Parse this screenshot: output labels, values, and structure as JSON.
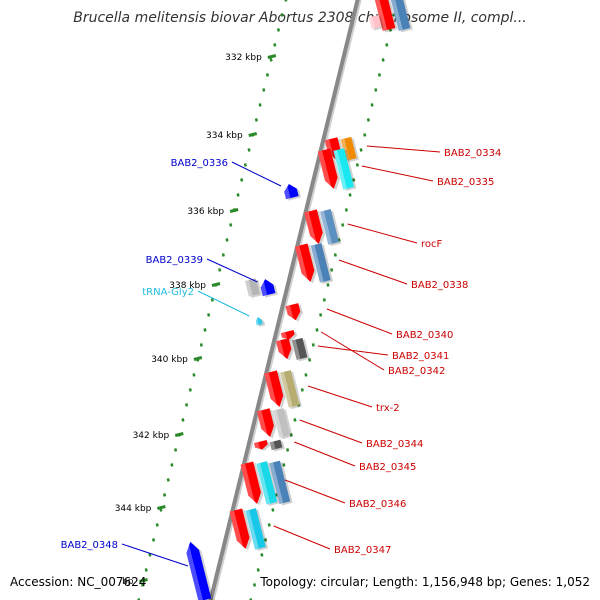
{
  "title": "Brucella melitensis biovar Abortus 2308 chromosome II, compl...",
  "footer": {
    "accession": "Accession: NC_007624",
    "topology": "Topology: circular; Length: 1,156,948 bp; Genes: 1,052"
  },
  "colors": {
    "forward_gene": "#ff0000",
    "reverse_gene": "#0000ff",
    "trna": "#33c8e8",
    "axis": "#888888",
    "tick": "#2a8a2a",
    "label_red": "#cc0000",
    "label_blue": "#0000cc",
    "label_cyan": "#22bbdd"
  },
  "ticks": [
    {
      "label": "332 kbp"
    },
    {
      "label": "334 kbp"
    },
    {
      "label": "336 kbp"
    },
    {
      "label": "338 kbp"
    },
    {
      "label": "340 kbp"
    },
    {
      "label": "342 kbp"
    },
    {
      "label": "344 kbp"
    },
    {
      "label": "bp"
    }
  ],
  "features": [
    {
      "name": "BAB2_0334",
      "strand": "+",
      "color": "red"
    },
    {
      "name": "BAB2_0335",
      "strand": "+",
      "color": "red"
    },
    {
      "name": "BAB2_0336",
      "strand": "-",
      "color": "blue"
    },
    {
      "name": "rocF",
      "strand": "+",
      "color": "red"
    },
    {
      "name": "BAB2_0338",
      "strand": "+",
      "color": "red"
    },
    {
      "name": "BAB2_0339",
      "strand": "-",
      "color": "blue"
    },
    {
      "name": "tRNA-Gly2",
      "strand": "-",
      "color": "cyan"
    },
    {
      "name": "BAB2_0340",
      "strand": "+",
      "color": "red"
    },
    {
      "name": "BAB2_0341",
      "strand": "+",
      "color": "red"
    },
    {
      "name": "BAB2_0342",
      "strand": "+",
      "color": "red"
    },
    {
      "name": "trx-2",
      "strand": "+",
      "color": "red"
    },
    {
      "name": "BAB2_0344",
      "strand": "+",
      "color": "red"
    },
    {
      "name": "BAB2_0345",
      "strand": "+",
      "color": "red"
    },
    {
      "name": "BAB2_0346",
      "strand": "+",
      "color": "red"
    },
    {
      "name": "BAB2_0347",
      "strand": "+",
      "color": "red"
    },
    {
      "name": "BAB2_0348",
      "strand": "-",
      "color": "blue"
    }
  ]
}
